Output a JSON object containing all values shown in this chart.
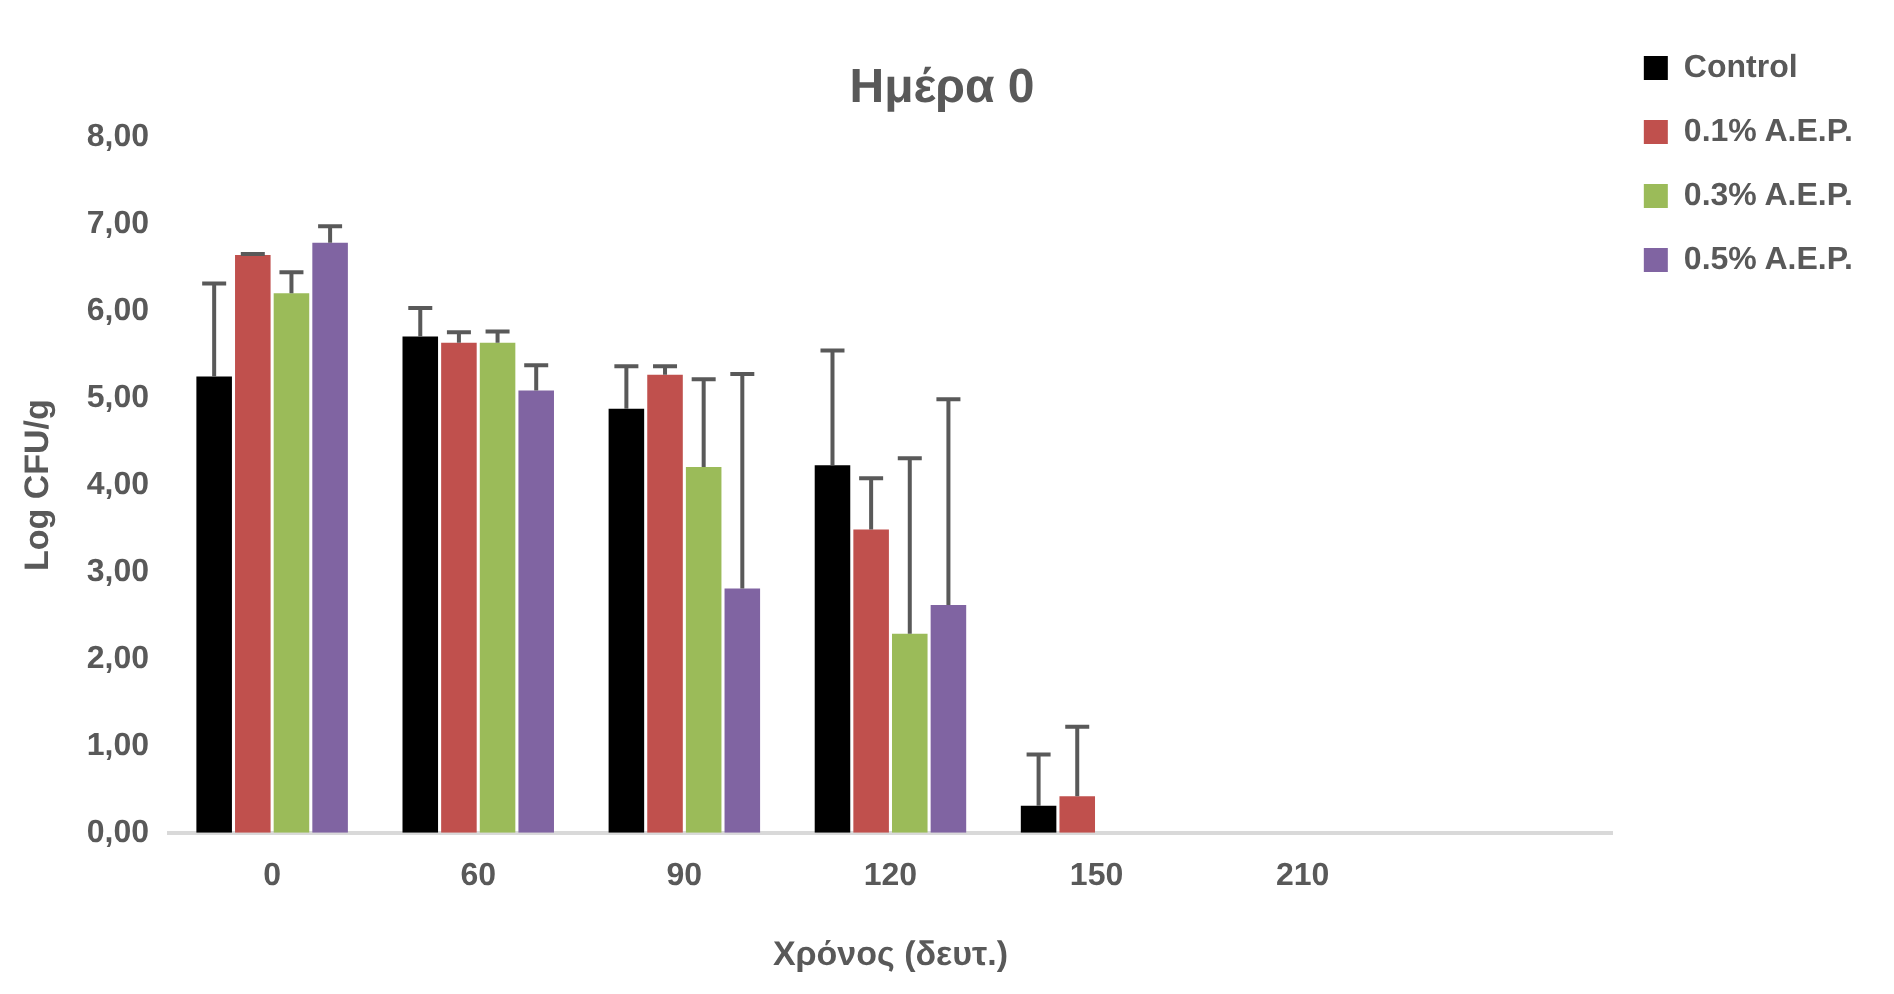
{
  "chart_data": {
    "type": "bar",
    "title": "Ημέρα 0",
    "xlabel": "Χρόνος (δευτ.)",
    "ylabel": "Log CFU/g",
    "categories": [
      "0",
      "60",
      "90",
      "120",
      "150",
      "210",
      null
    ],
    "series": [
      {
        "name": "Control",
        "color": "#000000",
        "values": [
          5.25,
          5.71,
          4.88,
          4.23,
          0.31,
          0,
          null
        ],
        "errors": [
          [
            5.25,
            6.32
          ],
          [
            5.71,
            6.04
          ],
          [
            4.88,
            5.37
          ],
          [
            4.23,
            5.55
          ],
          [
            0.31,
            0.9
          ],
          null,
          null
        ]
      },
      {
        "name": "0.1% A.E.P.",
        "color": "#c0504d",
        "values": [
          6.65,
          5.64,
          5.27,
          3.49,
          0.42,
          0,
          null
        ],
        "errors": [
          [
            6.65,
            6.66
          ],
          [
            5.64,
            5.76
          ],
          [
            5.27,
            5.37
          ],
          [
            3.49,
            4.08
          ],
          [
            0.42,
            1.22
          ],
          null,
          null
        ]
      },
      {
        "name": "0.3% A.E.P.",
        "color": "#9bbb59",
        "values": [
          6.21,
          5.64,
          4.21,
          2.29,
          0,
          0,
          null
        ],
        "errors": [
          [
            6.21,
            6.45
          ],
          [
            5.64,
            5.77
          ],
          [
            4.21,
            5.22
          ],
          [
            2.29,
            4.31
          ],
          null,
          null,
          null
        ]
      },
      {
        "name": "0.5% A.E.P.",
        "color": "#8064a2",
        "values": [
          6.79,
          5.09,
          2.81,
          2.62,
          0,
          0,
          null
        ],
        "errors": [
          [
            6.79,
            6.98
          ],
          [
            5.09,
            5.38
          ],
          [
            2.81,
            5.28
          ],
          [
            2.62,
            4.99
          ],
          null,
          null,
          null
        ]
      }
    ],
    "ylim": [
      0,
      8
    ],
    "yticks": [
      {
        "value": 0,
        "label": "0,00"
      },
      {
        "value": 1,
        "label": "1,00"
      },
      {
        "value": 2,
        "label": "2,00"
      },
      {
        "value": 3,
        "label": "3,00"
      },
      {
        "value": 4,
        "label": "4,00"
      },
      {
        "value": 5,
        "label": "5,00"
      },
      {
        "value": 6,
        "label": "6,00"
      },
      {
        "value": 7,
        "label": "7,00"
      },
      {
        "value": 8,
        "label": "8,00"
      }
    ],
    "grid": false,
    "legend": "top right"
  }
}
